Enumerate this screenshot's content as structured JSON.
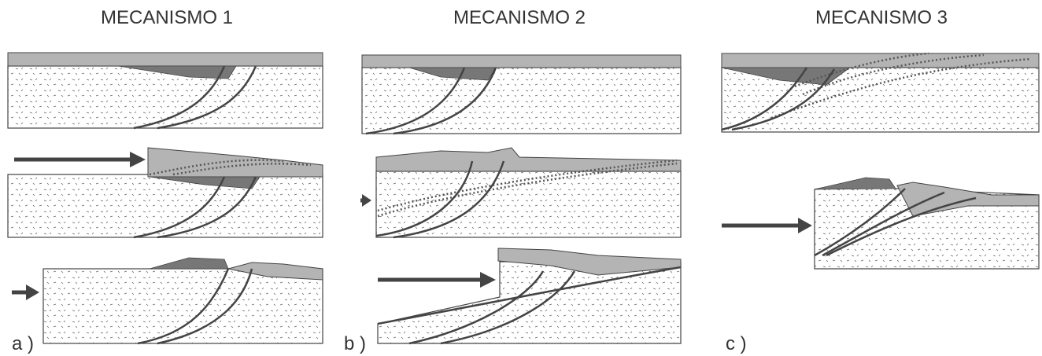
{
  "panels": [
    {
      "title": "MECANISMO 1",
      "label": "a )"
    },
    {
      "title": "MECANISMO 2",
      "label": "b )"
    },
    {
      "title": "MECANISMO 3",
      "label": "c )"
    }
  ]
}
